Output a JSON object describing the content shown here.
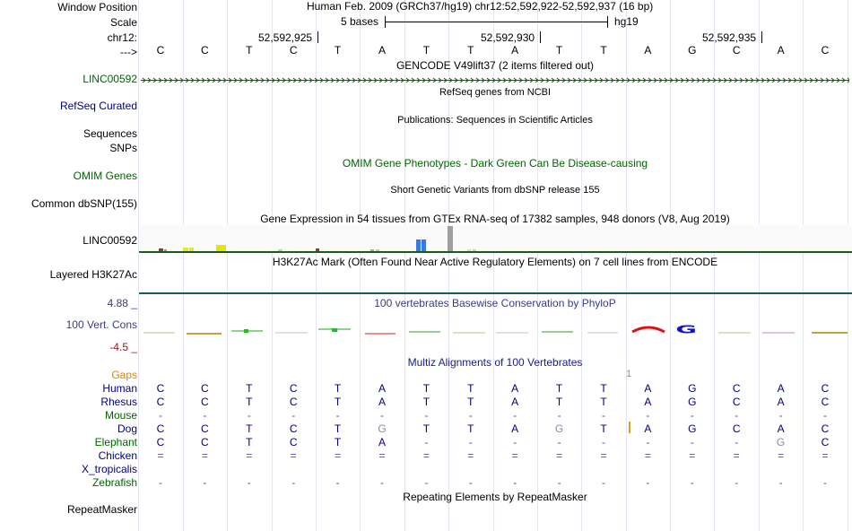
{
  "header": {
    "window_position_label": "Window Position",
    "window_position_value": "Human Feb. 2009 (GRCh37/hg19)   chr12:52,592,922-52,592,937 (16 bp)",
    "scale_label": "Scale",
    "scale_value": "5 bases",
    "scale_assembly": "hg19",
    "chrom_label": "chr12:",
    "coord_ticks": [
      "52,592,925",
      "52,592,930",
      "52,592,935"
    ],
    "strand_label": "--->"
  },
  "sequence": [
    "C",
    "C",
    "T",
    "C",
    "T",
    "A",
    "T",
    "T",
    "A",
    "T",
    "T",
    "A",
    "G",
    "C",
    "A",
    "C"
  ],
  "tracks": {
    "gencode_title": "GENCODE V49lift37 (2 items filtered out)",
    "gencode_gene": "LINC00592",
    "refseq_title": "RefSeq genes from NCBI",
    "refseq_label": "RefSeq Curated",
    "pubs_title": "Publications: Sequences in Scientific Articles",
    "sequences_label": "Sequences",
    "snps_label": "SNPs",
    "omim_title": "OMIM Gene Phenotypes - Dark Green Can Be Disease-causing",
    "omim_label": "OMIM Genes",
    "dbsnp_title": "Short Genetic Variants from dbSNP release 155",
    "dbsnp_label": "Common dbSNP(155)",
    "gtex_title": "Gene Expression in 54 tissues from GTEx RNA-seq of 17382 samples, 948 donors (V8, Aug 2019)",
    "gtex_label": "LINC00592",
    "h3k27_title": "H3K27Ac Mark (Often Found Near Active Regulatory Elements) on 7 cell lines from ENCODE",
    "h3k27_label": "Layered H3K27Ac",
    "phylop_title": "100 vertebrates Basewise Conservation by PhyloP",
    "phylop_max": "4.88 _",
    "phylop_min": "-4.5 _",
    "phylop_label": "100 Vert. Cons",
    "multiz_title": "Multiz Alignments of 100 Vertebrates",
    "gaps_label": "Gaps",
    "gap_marker": "1",
    "rmsk_title": "Repeating Elements by RepeatMasker",
    "rmsk_label": "RepeatMasker"
  },
  "alignment": {
    "species": [
      "Human",
      "Rhesus",
      "Mouse",
      "Dog",
      "Elephant",
      "Chicken",
      "X_tropicalis",
      "Zebrafish"
    ],
    "rows": [
      [
        "C",
        "C",
        "T",
        "C",
        "T",
        "A",
        "T",
        "T",
        "A",
        "T",
        "T",
        "A",
        "G",
        "C",
        "A",
        "C"
      ],
      [
        "C",
        "C",
        "T",
        "C",
        "T",
        "A",
        "T",
        "T",
        "A",
        "T",
        "T",
        "A",
        "G",
        "C",
        "A",
        "C"
      ],
      [
        "-",
        "-",
        "-",
        "-",
        "-",
        "-",
        "-",
        "-",
        "-",
        "-",
        "-",
        "-",
        "-",
        "-",
        "-",
        "-"
      ],
      [
        "C",
        "C",
        "T",
        "C",
        "T",
        "G",
        "T",
        "T",
        "A",
        "G",
        "T",
        "A",
        "G",
        "C",
        "A",
        "C"
      ],
      [
        "C",
        "C",
        "T",
        "C",
        "T",
        "A",
        "-",
        "-",
        "-",
        "-",
        "-",
        "-",
        "-",
        "-",
        "G",
        "C"
      ],
      [
        "=",
        "=",
        "=",
        "=",
        "=",
        "=",
        "=",
        "=",
        "=",
        "=",
        "=",
        "=",
        "=",
        "=",
        "=",
        "="
      ],
      [
        "",
        "",
        "",
        "",
        "",
        "",
        "",
        "",
        "",
        "",
        "",
        "",
        "",
        "",
        "",
        ""
      ],
      [
        "-",
        "-",
        "-",
        "-",
        "-",
        "-",
        "-",
        "-",
        "-",
        "-",
        "-",
        "-",
        "-",
        "-",
        "-",
        "-"
      ]
    ]
  },
  "colors": {
    "track_green": "#006400",
    "label_navy": "#000080",
    "h3k27_line": "#1a5c1a",
    "gap_orange": "#d4860f"
  }
}
